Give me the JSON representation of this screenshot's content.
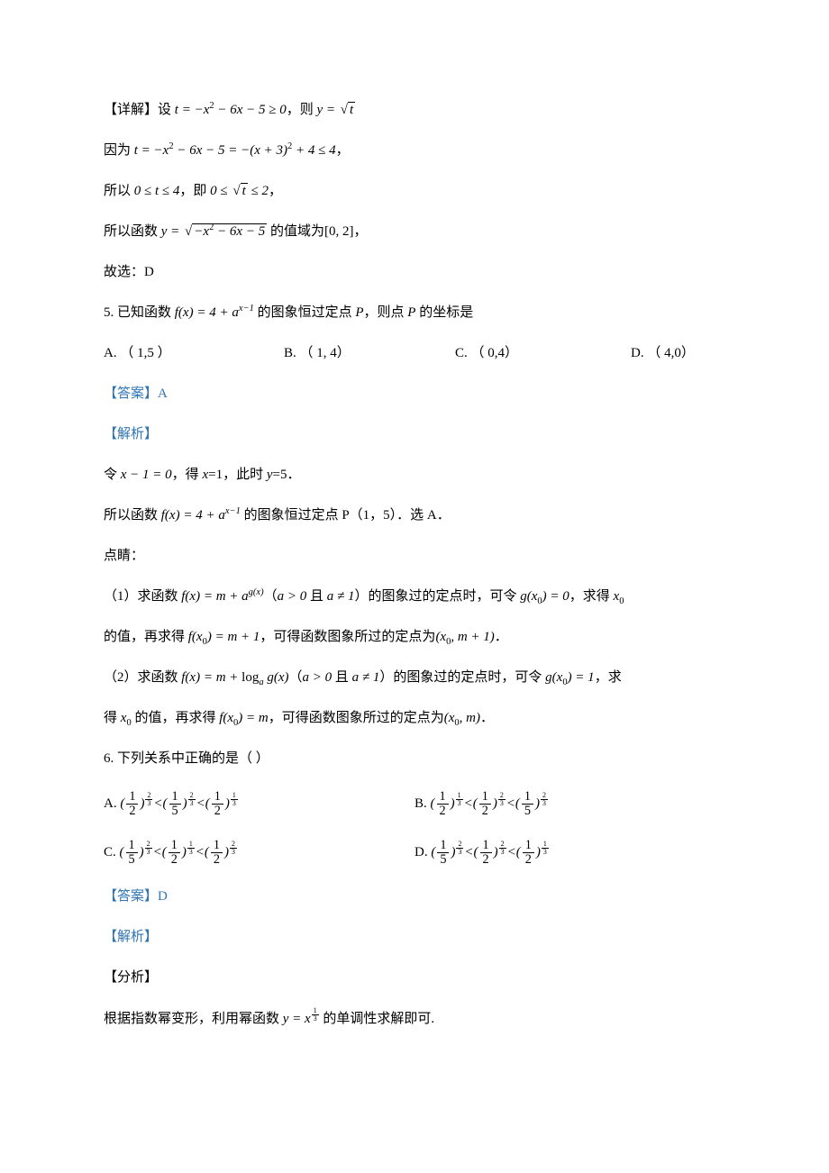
{
  "colors": {
    "text": "#000000",
    "accent": "#2e74b5",
    "background": "#ffffff"
  },
  "typography": {
    "body_font": "SimSun / 宋体",
    "math_font": "Times New Roman",
    "body_size_pt": 11,
    "line_height": 2.2
  },
  "content": {
    "detail_label": "【详解】",
    "detail_l1_pre": "设 ",
    "detail_l1_math": "t = −x² − 6x − 5 ≥ 0",
    "detail_l1_mid": "，则 ",
    "detail_l1_math2": "y = √t",
    "detail_l2_pre": "因为 ",
    "detail_l2_math": "t = −x² − 6x − 5 = −(x + 3)² + 4 ≤ 4",
    "detail_l2_post": "，",
    "detail_l3_pre": "所以 ",
    "detail_l3_math1": "0 ≤ t ≤ 4",
    "detail_l3_mid": "，即 ",
    "detail_l3_math2": "0 ≤ √t ≤ 2",
    "detail_l3_post": "，",
    "detail_l4_pre": "所以函数 ",
    "detail_l4_math": "y = √(−x² − 6x − 5)",
    "detail_l4_mid": " 的值域为",
    "detail_l4_range": "[0, 2]",
    "detail_l4_post": "，",
    "detail_l5": "故选：D",
    "q5_num": "5. ",
    "q5_pre": "已知函数 ",
    "q5_math": "f(x) = 4 + a^{x−1}",
    "q5_mid": " 的图象恒过定点 ",
    "q5_P": "P",
    "q5_post1": "，则点 ",
    "q5_post2": " 的坐标是",
    "q5_optA": "A. （ 1,5 ）",
    "q5_optB": "B. （ 1, 4）",
    "q5_optC": "C. （ 0,4）",
    "q5_optD": "D. （ 4,0）",
    "ans_label": "【答案】",
    "q5_ans": "A",
    "sol_label": "【解析】",
    "q5_sol_l1_pre": "令 ",
    "q5_sol_l1_math": "x − 1 = 0",
    "q5_sol_l1_mid": "，得 ",
    "q5_sol_l1_x": "x",
    "q5_sol_l1_eq1": "=1，此时 ",
    "q5_sol_l1_y": "y",
    "q5_sol_l1_eq2": "=5．",
    "q5_sol_l2_pre": "所以函数 ",
    "q5_sol_l2_math": "f(x) = 4 + a^{x−1}",
    "q5_sol_l2_post": " 的图象恒过定点 P（1，5）．选 A．",
    "dianqing": "点睛：",
    "dq1_pre": "（1）求函数 ",
    "dq1_math1": "f(x) = m + a^{g(x)}",
    "dq1_mid1": "（",
    "dq1_cond": "a > 0 且 a ≠ 1",
    "dq1_mid2": "）的图象过的定点时，可令 ",
    "dq1_math2": "g(x₀) = 0",
    "dq1_post": "，求得 ",
    "dq1_x0": "x₀",
    "dq1b_pre": "的值，再求得 ",
    "dq1b_math": "f(x₀) = m + 1",
    "dq1b_mid": "，可得函数图象所过的定点为",
    "dq1b_pt": "(x₀, m + 1)",
    "dq1b_post": "．",
    "dq2_pre": "（2）求函数 ",
    "dq2_math1": "f(x) = m + logₐ g(x)",
    "dq2_mid1": "（",
    "dq2_cond": "a > 0 且 a ≠ 1",
    "dq2_mid2": "）的图象过的定点时，可令 ",
    "dq2_math2": "g(x₀) = 1",
    "dq2_post": "，求",
    "dq2b_pre": "得 ",
    "dq2b_x0": "x₀",
    "dq2b_mid1": " 的值，再求得 ",
    "dq2b_math": "f(x₀) = m",
    "dq2b_mid2": "，可得函数图象所过的定点为",
    "dq2b_pt": "(x₀, m)",
    "dq2b_post": "．",
    "q6_num": "6. ",
    "q6_text": "下列关系中正确的是（     ）",
    "q6_optA_label": "A. ",
    "q6_optA_math": "(1/2)^{2/3} < (1/5)^{2/3} < (1/2)^{1/3}",
    "q6_optB_label": "B. ",
    "q6_optB_math": "(1/2)^{1/3} < (1/2)^{2/3} < (1/5)^{2/3}",
    "q6_optC_label": "C. ",
    "q6_optC_math": "(1/5)^{2/3} < (1/2)^{1/3} < (1/2)^{2/3}",
    "q6_optD_label": "D. ",
    "q6_optD_math": "(1/5)^{2/3} < (1/2)^{2/3} < (1/2)^{1/3}",
    "q6_ans": "D",
    "analysis_label": "【分析】",
    "q6_ana_pre": "根据指数幂变形，利用幂函数 ",
    "q6_ana_math": "y = x^{1/3}",
    "q6_ana_post": " 的单调性求解即可."
  }
}
